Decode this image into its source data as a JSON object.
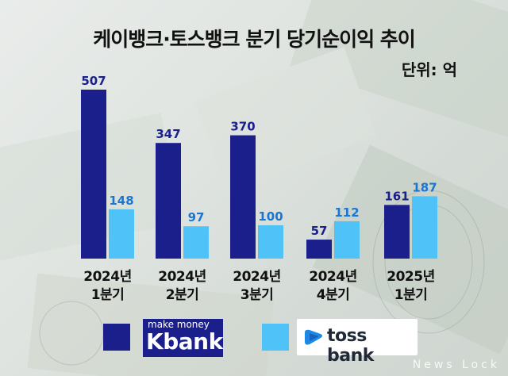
{
  "title": "케이뱅크·토스뱅크 분기 당기순이익 추이",
  "unit": "단위: 억",
  "chart_data": {
    "type": "bar",
    "categories": [
      "2024년\n1분기",
      "2024년\n2분기",
      "2024년\n3분기",
      "2024년\n4분기",
      "2025년\n1분기"
    ],
    "series": [
      {
        "name": "Kbank",
        "values": [
          507,
          347,
          370,
          57,
          161
        ],
        "color": "#1b1f8c"
      },
      {
        "name": "toss bank",
        "values": [
          148,
          97,
          100,
          112,
          187
        ],
        "color": "#4fc3f7"
      }
    ],
    "ylim": [
      0,
      507
    ]
  },
  "legend": {
    "kbank_tagline": "make money",
    "kbank_name": "Kbank",
    "toss_name": "toss bank"
  },
  "watermark": "News Lock"
}
